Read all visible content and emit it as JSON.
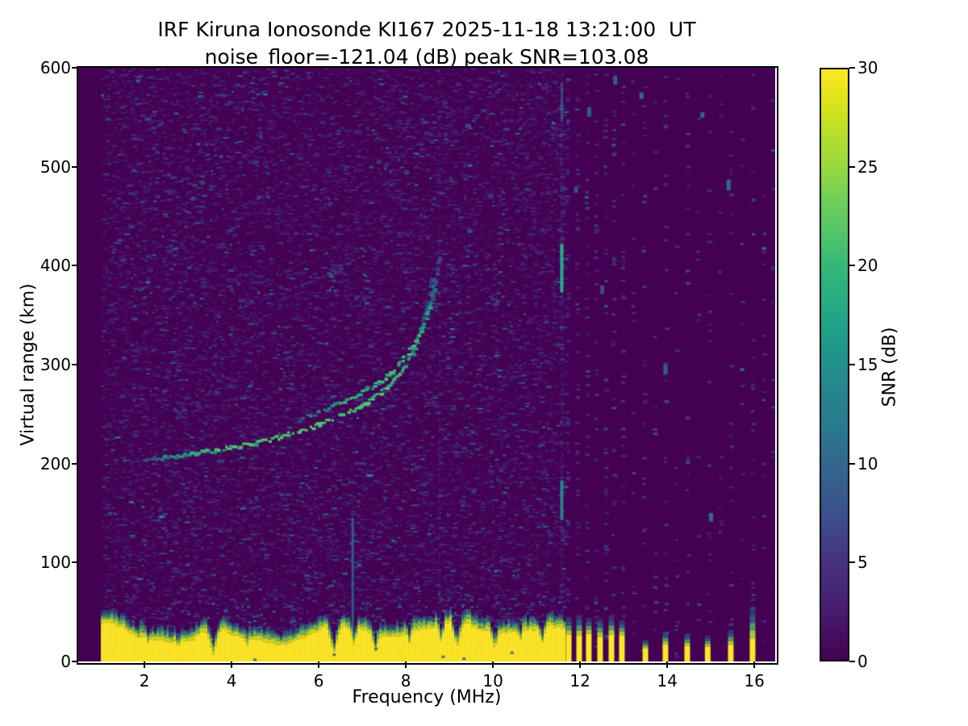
{
  "figure": {
    "title_line1": "IRF Kiruna Ionosonde KI167 2025-11-18 13:21:00  UT",
    "title_line2": "noise_floor=-121.04 (dB) peak SNR=103.08"
  },
  "axes": {
    "xlabel": "Frequency (MHz)",
    "ylabel": "Virtual range (km)",
    "x_ticks": [
      2,
      4,
      6,
      8,
      10,
      12,
      14,
      16
    ],
    "y_ticks": [
      0,
      100,
      200,
      300,
      400,
      500,
      600
    ]
  },
  "colorbar": {
    "label": "SNR (dB)",
    "ticks": [
      0,
      5,
      10,
      15,
      20,
      25,
      30
    ],
    "gradient": [
      "#440154",
      "#471365",
      "#482475",
      "#46327e",
      "#3f4889",
      "#38598c",
      "#31688e",
      "#2a788e",
      "#26828e",
      "#21918c",
      "#1f9e89",
      "#27ad81",
      "#35b779",
      "#52c569",
      "#6ece58",
      "#97d83f",
      "#b5de2b",
      "#dde318",
      "#fde725"
    ]
  },
  "chart_data": {
    "type": "heatmap",
    "title": "IRF Kiruna Ionosonde KI167 2025-11-18 13:21:00  UT",
    "subtitle": "noise_floor=-121.04 (dB) peak SNR=103.08",
    "xlabel": "Frequency (MHz)",
    "ylabel": "Virtual range (km)",
    "zlabel": "SNR (dB)",
    "xlim": [
      0.48,
      16.48
    ],
    "ylim": [
      0,
      600
    ],
    "zlim": [
      0,
      30
    ],
    "noise_floor_db": -121.04,
    "peak_snr_db": 103.08,
    "sweep_start_mhz": 1.0,
    "interference_cutoff_mhz": 11.63,
    "echo_traces": {
      "o_mode_f_alt": [
        [
          1.95,
          205
        ],
        [
          2.4,
          207
        ],
        [
          2.9,
          210
        ],
        [
          3.4,
          213
        ],
        [
          3.9,
          217
        ],
        [
          4.4,
          221
        ],
        [
          4.9,
          226
        ],
        [
          5.4,
          232
        ],
        [
          5.9,
          239
        ],
        [
          6.3,
          246
        ],
        [
          6.7,
          254
        ],
        [
          7.0,
          261
        ],
        [
          7.3,
          270
        ],
        [
          7.6,
          281
        ],
        [
          7.85,
          293
        ],
        [
          8.05,
          307
        ],
        [
          8.2,
          322
        ],
        [
          8.32,
          338
        ],
        [
          8.42,
          355
        ],
        [
          8.5,
          373
        ],
        [
          8.56,
          391
        ]
      ],
      "x_mode_f_alt": [
        [
          5.5,
          246
        ],
        [
          5.9,
          252
        ],
        [
          6.3,
          259
        ],
        [
          6.7,
          267
        ],
        [
          7.1,
          276
        ],
        [
          7.45,
          286
        ],
        [
          7.75,
          298
        ],
        [
          8.0,
          311
        ],
        [
          8.2,
          325
        ],
        [
          8.37,
          341
        ],
        [
          8.5,
          358
        ],
        [
          8.6,
          376
        ],
        [
          8.68,
          395
        ],
        [
          8.74,
          414
        ]
      ]
    },
    "vertical_lines": [
      {
        "f": 8.78,
        "alt": [
          0,
          600
        ],
        "color": "#3f4889",
        "alpha": 0.4,
        "w": 2,
        "dashed": true
      },
      {
        "f": 6.78,
        "alt": [
          28,
          145
        ],
        "color": "#2a788e",
        "alpha": 0.75,
        "w": 3,
        "dashed": false
      },
      {
        "f": 11.58,
        "alt": [
          0,
          600
        ],
        "color": "#472a7a",
        "alpha": 0.45,
        "w": 3,
        "dashed": true
      },
      {
        "f": 11.58,
        "alt": [
          373,
          422
        ],
        "color": "#27ad81",
        "alpha": 1.0,
        "w": 4,
        "dashed": false
      },
      {
        "f": 11.58,
        "alt": [
          143,
          183
        ],
        "color": "#21918c",
        "alpha": 0.9,
        "w": 4,
        "dashed": false
      },
      {
        "f": 11.58,
        "alt": [
          545,
          585
        ],
        "color": "#2a788e",
        "alpha": 0.6,
        "w": 3,
        "dashed": false
      }
    ],
    "noise_columns": [
      {
        "f": 11.56,
        "density": 0.9
      },
      {
        "f": 11.7,
        "density": 0.85
      },
      {
        "f": 11.92,
        "density": 0.8
      },
      {
        "f": 12.14,
        "density": 0.8
      },
      {
        "f": 12.35,
        "density": 0.75
      },
      {
        "f": 12.57,
        "density": 0.7
      },
      {
        "f": 12.75,
        "density": 0.65
      },
      {
        "f": 12.97,
        "density": 0.6
      },
      {
        "f": 13.2,
        "density": 0.3
      },
      {
        "f": 13.45,
        "density": 0.45
      },
      {
        "f": 13.7,
        "density": 0.25
      },
      {
        "f": 13.95,
        "density": 0.5
      },
      {
        "f": 14.2,
        "density": 0.25
      },
      {
        "f": 14.45,
        "density": 0.45
      },
      {
        "f": 14.7,
        "density": 0.2
      },
      {
        "f": 14.95,
        "density": 0.4
      },
      {
        "f": 15.2,
        "density": 0.2
      },
      {
        "f": 15.45,
        "density": 0.45
      },
      {
        "f": 15.7,
        "density": 0.2
      },
      {
        "f": 15.95,
        "density": 0.5
      },
      {
        "f": 16.2,
        "density": 0.3
      },
      {
        "f": 16.4,
        "density": 0.2
      }
    ],
    "bright_spots": [
      {
        "f": 13.4,
        "alt": 575,
        "color": "#2a788e"
      },
      {
        "f": 14.8,
        "alt": 555,
        "color": "#26828e"
      },
      {
        "f": 15.4,
        "alt": 487,
        "color": "#2a788e"
      },
      {
        "f": 12.8,
        "alt": 592,
        "color": "#31688e"
      },
      {
        "f": 12.2,
        "alt": 560,
        "color": "#31688e"
      },
      {
        "f": 13.95,
        "alt": 300,
        "color": "#31688e"
      },
      {
        "f": 15.0,
        "alt": 150,
        "color": "#2a788e"
      },
      {
        "f": 12.5,
        "alt": 380,
        "color": "#38598c"
      },
      {
        "f": 11.9,
        "alt": 480,
        "color": "#38598c"
      }
    ],
    "ground_band": {
      "top_alt_mean_km": 29,
      "top_alt_wave_km": 8,
      "speckle_max_alt_km": 60,
      "notches_f_width_floor": [
        [
          2.05,
          5,
          18
        ],
        [
          2.75,
          7,
          12
        ],
        [
          3.12,
          5,
          20
        ],
        [
          3.55,
          7,
          6
        ],
        [
          4.32,
          7,
          14
        ],
        [
          4.85,
          5,
          20
        ],
        [
          5.3,
          5,
          22
        ],
        [
          6.32,
          9,
          8
        ],
        [
          6.78,
          7,
          16
        ],
        [
          7.28,
          7,
          10
        ],
        [
          8.05,
          5,
          18
        ],
        [
          8.78,
          5,
          20
        ],
        [
          9.15,
          7,
          14
        ],
        [
          10.02,
          7,
          12
        ],
        [
          10.6,
          5,
          20
        ],
        [
          11.1,
          5,
          18
        ]
      ],
      "impurities_f_alt": [
        [
          4.5,
          3
        ],
        [
          6.32,
          8
        ],
        [
          7.28,
          14
        ],
        [
          8.82,
          6
        ],
        [
          9.3,
          4
        ],
        [
          10.4,
          10
        ]
      ],
      "bars_f_top_cap": [
        [
          11.74,
          27,
          45
        ],
        [
          11.98,
          26,
          47
        ],
        [
          12.2,
          28,
          44
        ],
        [
          12.46,
          25,
          43
        ],
        [
          12.72,
          27,
          46
        ],
        [
          12.96,
          26,
          42
        ],
        [
          13.5,
          13,
          22
        ],
        [
          13.96,
          17,
          30
        ],
        [
          14.46,
          16,
          28
        ],
        [
          14.93,
          15,
          26
        ],
        [
          15.46,
          17,
          32
        ],
        [
          15.96,
          23,
          55
        ]
      ]
    },
    "render": {
      "seed": 1337,
      "background": "#440154",
      "dense_dashes": 11000,
      "fine_dashes": 5200,
      "bright_speckles": 260,
      "noise_palette": [
        [
          "#45186c",
          40
        ],
        [
          "#472a7a",
          28
        ],
        [
          "#443983",
          16
        ],
        [
          "#3d4e8a",
          9
        ],
        [
          "#375a8c",
          4
        ],
        [
          "#2d708e",
          2
        ],
        [
          "#21918c",
          0.8
        ],
        [
          "#27ad81",
          0.2
        ]
      ],
      "trace_palette": [
        "#355f8d",
        "#2a788e",
        "#21918c",
        "#20a486",
        "#27ad81",
        "#3bbb75",
        "#51c56a"
      ],
      "band_yellow": "#fde725",
      "band_cap_colors": [
        "#d8e219",
        "#89d548",
        "#35b779",
        "#1f978b",
        "#2a788e"
      ]
    }
  }
}
